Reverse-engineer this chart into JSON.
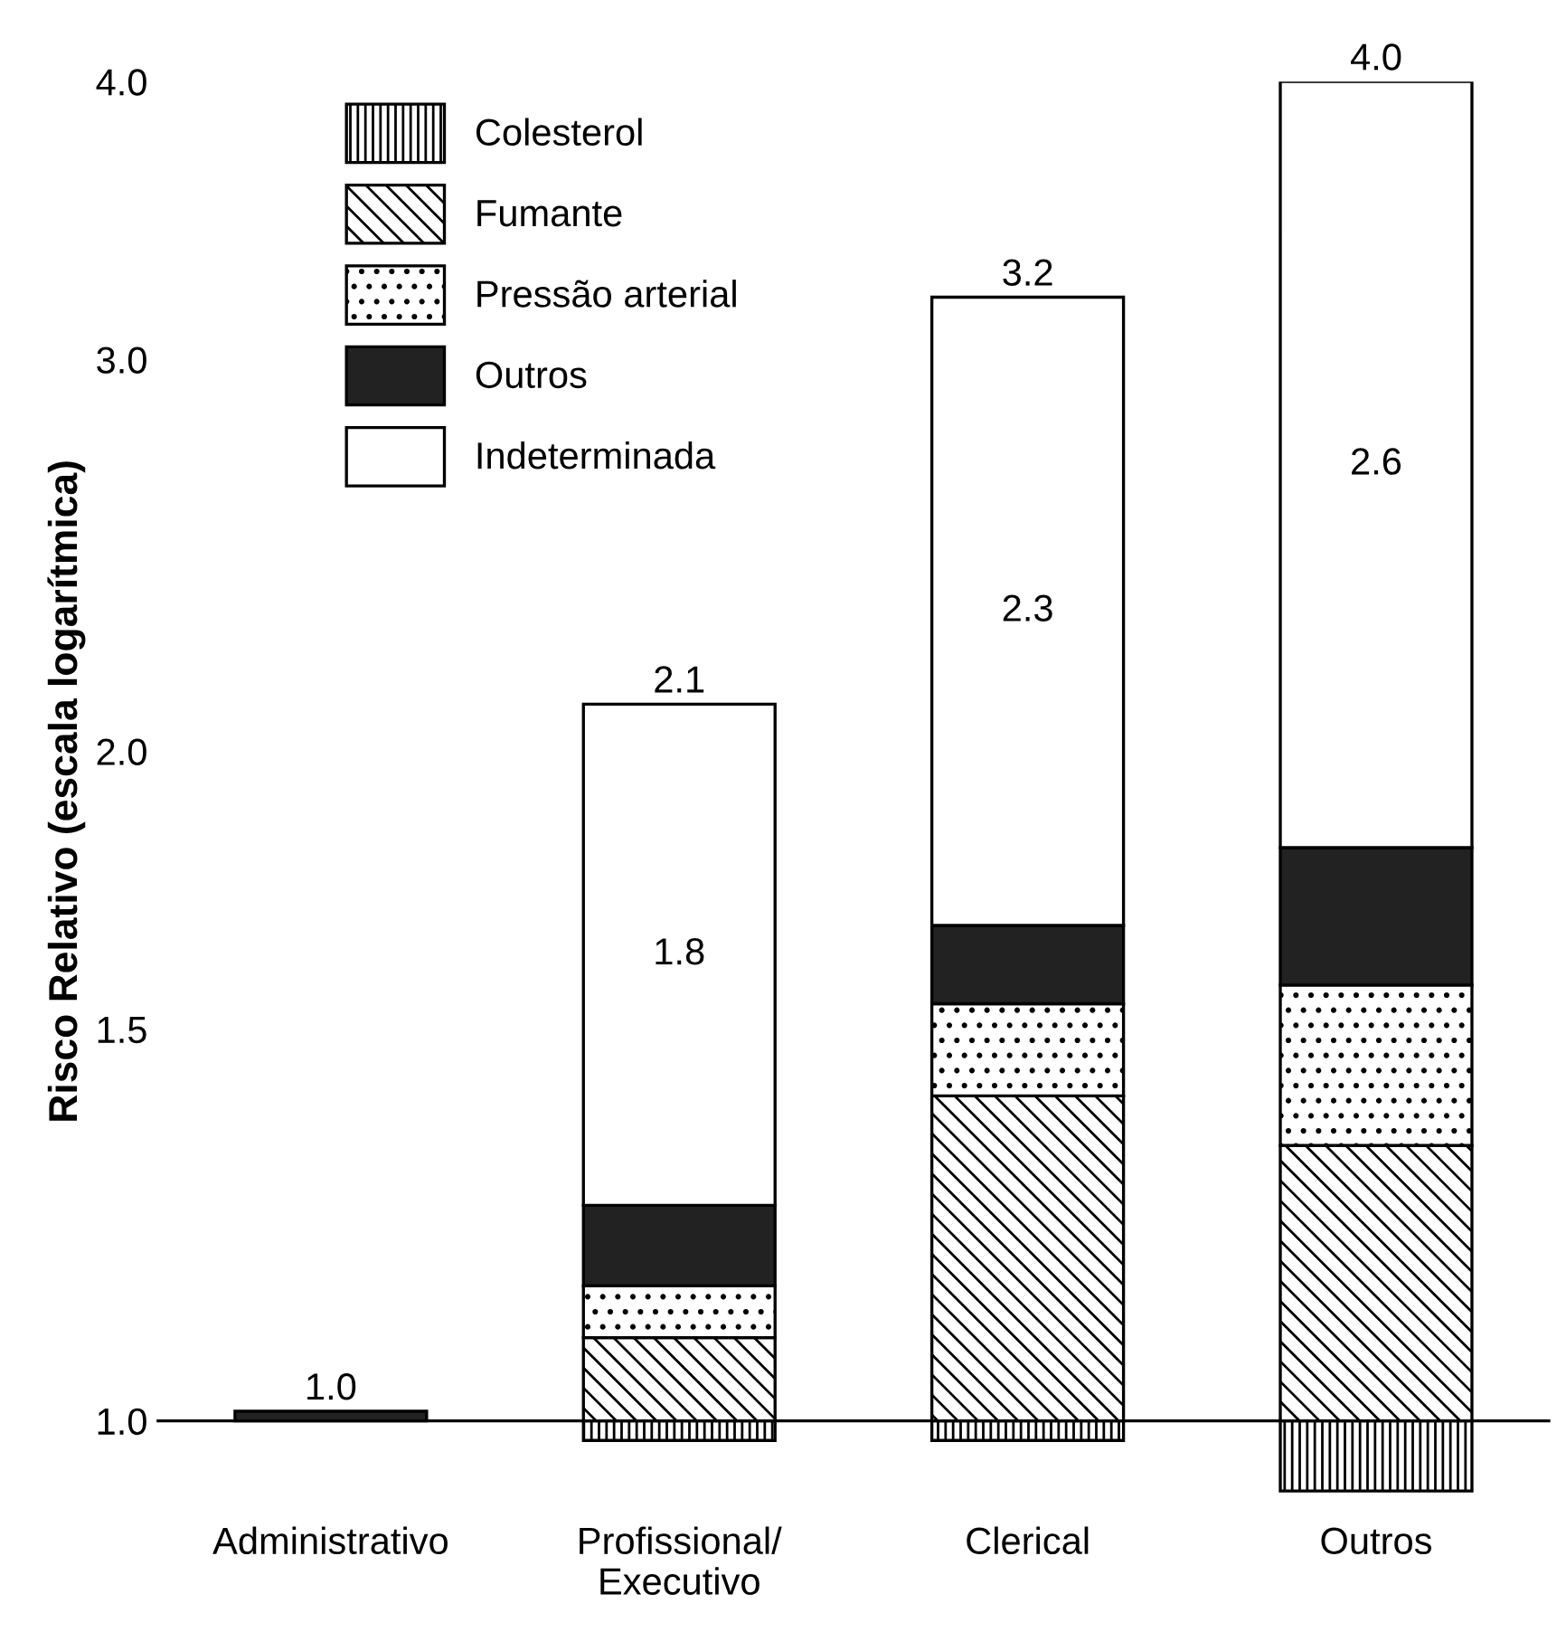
{
  "chart_data": {
    "type": "bar",
    "ylabel": "Risco Relativo (escala logarítmica)",
    "categories": [
      "Administrativo",
      "Profissional/\nExecutivo",
      "Clerical",
      "Outros"
    ],
    "series": [
      {
        "name": "Colesterol",
        "color": "#000000",
        "base": [
          null,
          0.98,
          0.98,
          0.93
        ],
        "values": [
          null,
          0.02,
          0.02,
          0.07
        ]
      },
      {
        "name": "Fumante",
        "color": "#000000",
        "base": [
          null,
          1.0,
          1.0,
          1.0
        ],
        "values": [
          null,
          0.09,
          0.4,
          0.33
        ]
      },
      {
        "name": "Pressão arterial",
        "color": "#000000",
        "base": [
          null,
          1.09,
          1.4,
          1.33
        ],
        "values": [
          null,
          0.06,
          0.14,
          0.24
        ]
      },
      {
        "name": "Outros",
        "color": "#222222",
        "base": [
          1.0,
          1.15,
          1.54,
          1.57
        ],
        "values": [
          0.01,
          0.1,
          0.13,
          0.24
        ]
      },
      {
        "name": "Indeterminada",
        "color": "#ffffff",
        "base": [
          null,
          1.25,
          1.67,
          1.81
        ],
        "values": [
          null,
          0.85,
          1.53,
          2.19
        ]
      }
    ],
    "annotations": [
      {
        "text": "1.0",
        "x": "Administrativo",
        "y": 1.01
      },
      {
        "text": "2.1",
        "x": "Profissional/\nExecutivo",
        "y": 2.1
      },
      {
        "text": "3.2",
        "x": "Clerical",
        "y": 3.2
      },
      {
        "text": "4.0",
        "x": "Outros",
        "y": 4.0
      },
      "1.8",
      "2.3",
      "2.6"
    ],
    "log": "y",
    "ylim": [
      0.92,
      4.0
    ],
    "yticks": [
      {
        "value": 1.0,
        "label": "1.0"
      },
      {
        "value": 1.5,
        "label": "1.5"
      },
      {
        "value": 2.0,
        "label": "2.0"
      },
      {
        "value": 3.0,
        "label": "3.0"
      },
      {
        "value": 4.0,
        "label": "4.0"
      }
    ],
    "ref_lines": [
      {
        "axis": "y",
        "value": 1.0,
        "color": "#000000"
      }
    ],
    "legend": "top left"
  }
}
